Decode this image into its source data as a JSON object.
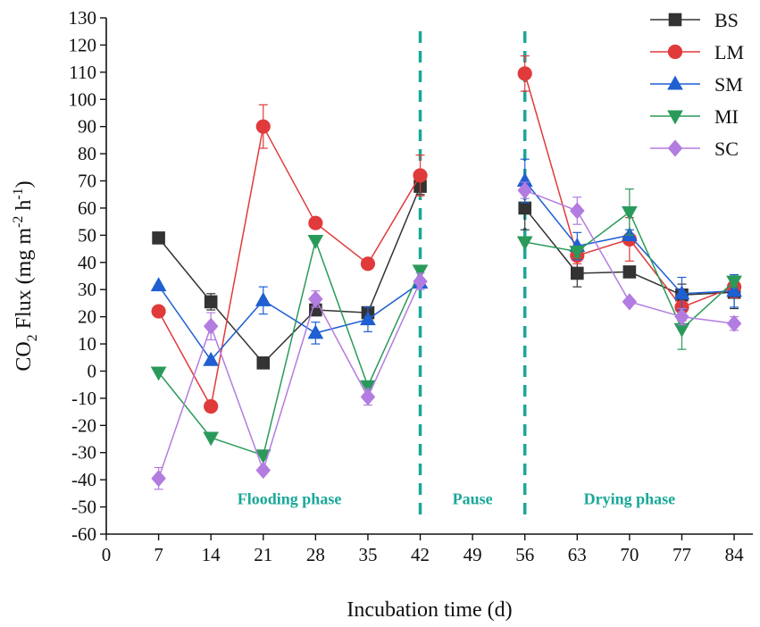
{
  "chart_data": {
    "type": "line",
    "xlabel": "Incubation time (d)",
    "ylabel": {
      "main": "CO",
      "sub": "2",
      "rest": " Flux (mg m",
      "sup1": "-2",
      "mid": " h",
      "sup2": "-1",
      "end": ")"
    },
    "xlim": [
      0,
      86.5
    ],
    "ylim": [
      -60,
      130
    ],
    "xticks": [
      0,
      7,
      14,
      21,
      28,
      35,
      42,
      49,
      56,
      63,
      70,
      77,
      84
    ],
    "yticks": [
      -60,
      -50,
      -40,
      -30,
      -20,
      -10,
      0,
      10,
      20,
      30,
      40,
      50,
      60,
      70,
      80,
      90,
      100,
      110,
      120,
      130
    ],
    "legend_position": "top-right",
    "phase_lines": [
      42,
      56
    ],
    "phase_color": "#1aa898",
    "phases": [
      {
        "label": "Flooding phase",
        "x": 24.5,
        "y": -47
      },
      {
        "label": "Pause",
        "x": 49,
        "y": -47
      },
      {
        "label": "Drying phase",
        "x": 70,
        "y": -47
      }
    ],
    "series": [
      {
        "name": "BS",
        "color": "#333333",
        "marker": "square",
        "segments": [
          {
            "x": [
              7,
              14,
              21,
              28,
              35,
              42
            ],
            "y": [
              49,
              25.5,
              3,
              22.5,
              21.5,
              68
            ],
            "err": [
              0,
              3,
              0,
              1.5,
              1.5,
              3
            ]
          },
          {
            "x": [
              56,
              63,
              70,
              77,
              84
            ],
            "y": [
              60,
              36,
              36.5,
              28,
              29
            ],
            "err": [
              8,
              5,
              1,
              4,
              6
            ]
          }
        ]
      },
      {
        "name": "LM",
        "color": "#e03a3a",
        "marker": "circle",
        "segments": [
          {
            "x": [
              7,
              14,
              21,
              28,
              35,
              42
            ],
            "y": [
              22,
              -13,
              90,
              54.5,
              39.5,
              72
            ],
            "err": [
              0,
              0,
              8,
              0,
              0,
              7.5
            ]
          },
          {
            "x": [
              56,
              63,
              70,
              77,
              84
            ],
            "y": [
              109.5,
              42.5,
              48.5,
              23.5,
              31
            ],
            "err": [
              6.5,
              3,
              8,
              5,
              4
            ]
          }
        ]
      },
      {
        "name": "SM",
        "color": "#1f5fd1",
        "marker": "triangle-up",
        "segments": [
          {
            "x": [
              7,
              14,
              21,
              28,
              35,
              42
            ],
            "y": [
              31.5,
              4,
              26,
              14,
              19,
              32.5
            ],
            "err": [
              0,
              0,
              5,
              4,
              4.5,
              0
            ]
          },
          {
            "x": [
              56,
              63,
              70,
              77,
              84
            ],
            "y": [
              70,
              46,
              50,
              28.5,
              29.5
            ],
            "err": [
              8,
              5,
              2,
              6,
              6
            ]
          }
        ]
      },
      {
        "name": "MI",
        "color": "#2a9a5a",
        "marker": "triangle-down",
        "segments": [
          {
            "x": [
              7,
              14,
              21,
              28,
              35,
              42
            ],
            "y": [
              -0.5,
              -24.5,
              -31,
              48,
              -5.5,
              37
            ],
            "err": [
              0,
              0,
              0,
              0,
              0,
              0
            ]
          },
          {
            "x": [
              56,
              63,
              70,
              77,
              84
            ],
            "y": [
              47.5,
              44,
              58.5,
              15.5,
              33
            ],
            "err": [
              0,
              2,
              8.5,
              7.5,
              2
            ]
          }
        ]
      },
      {
        "name": "SC",
        "color": "#b37ce0",
        "marker": "diamond",
        "segments": [
          {
            "x": [
              7,
              14,
              21,
              28,
              35,
              42
            ],
            "y": [
              -39.5,
              16.5,
              -36.5,
              26.5,
              -9.5,
              33
            ],
            "err": [
              4,
              5,
              0,
              3,
              3,
              3
            ]
          },
          {
            "x": [
              56,
              63,
              70,
              77,
              84
            ],
            "y": [
              66.5,
              59,
              25.5,
              20,
              17.5
            ],
            "err": [
              3,
              5,
              0,
              3,
              2.5
            ]
          }
        ]
      }
    ]
  }
}
